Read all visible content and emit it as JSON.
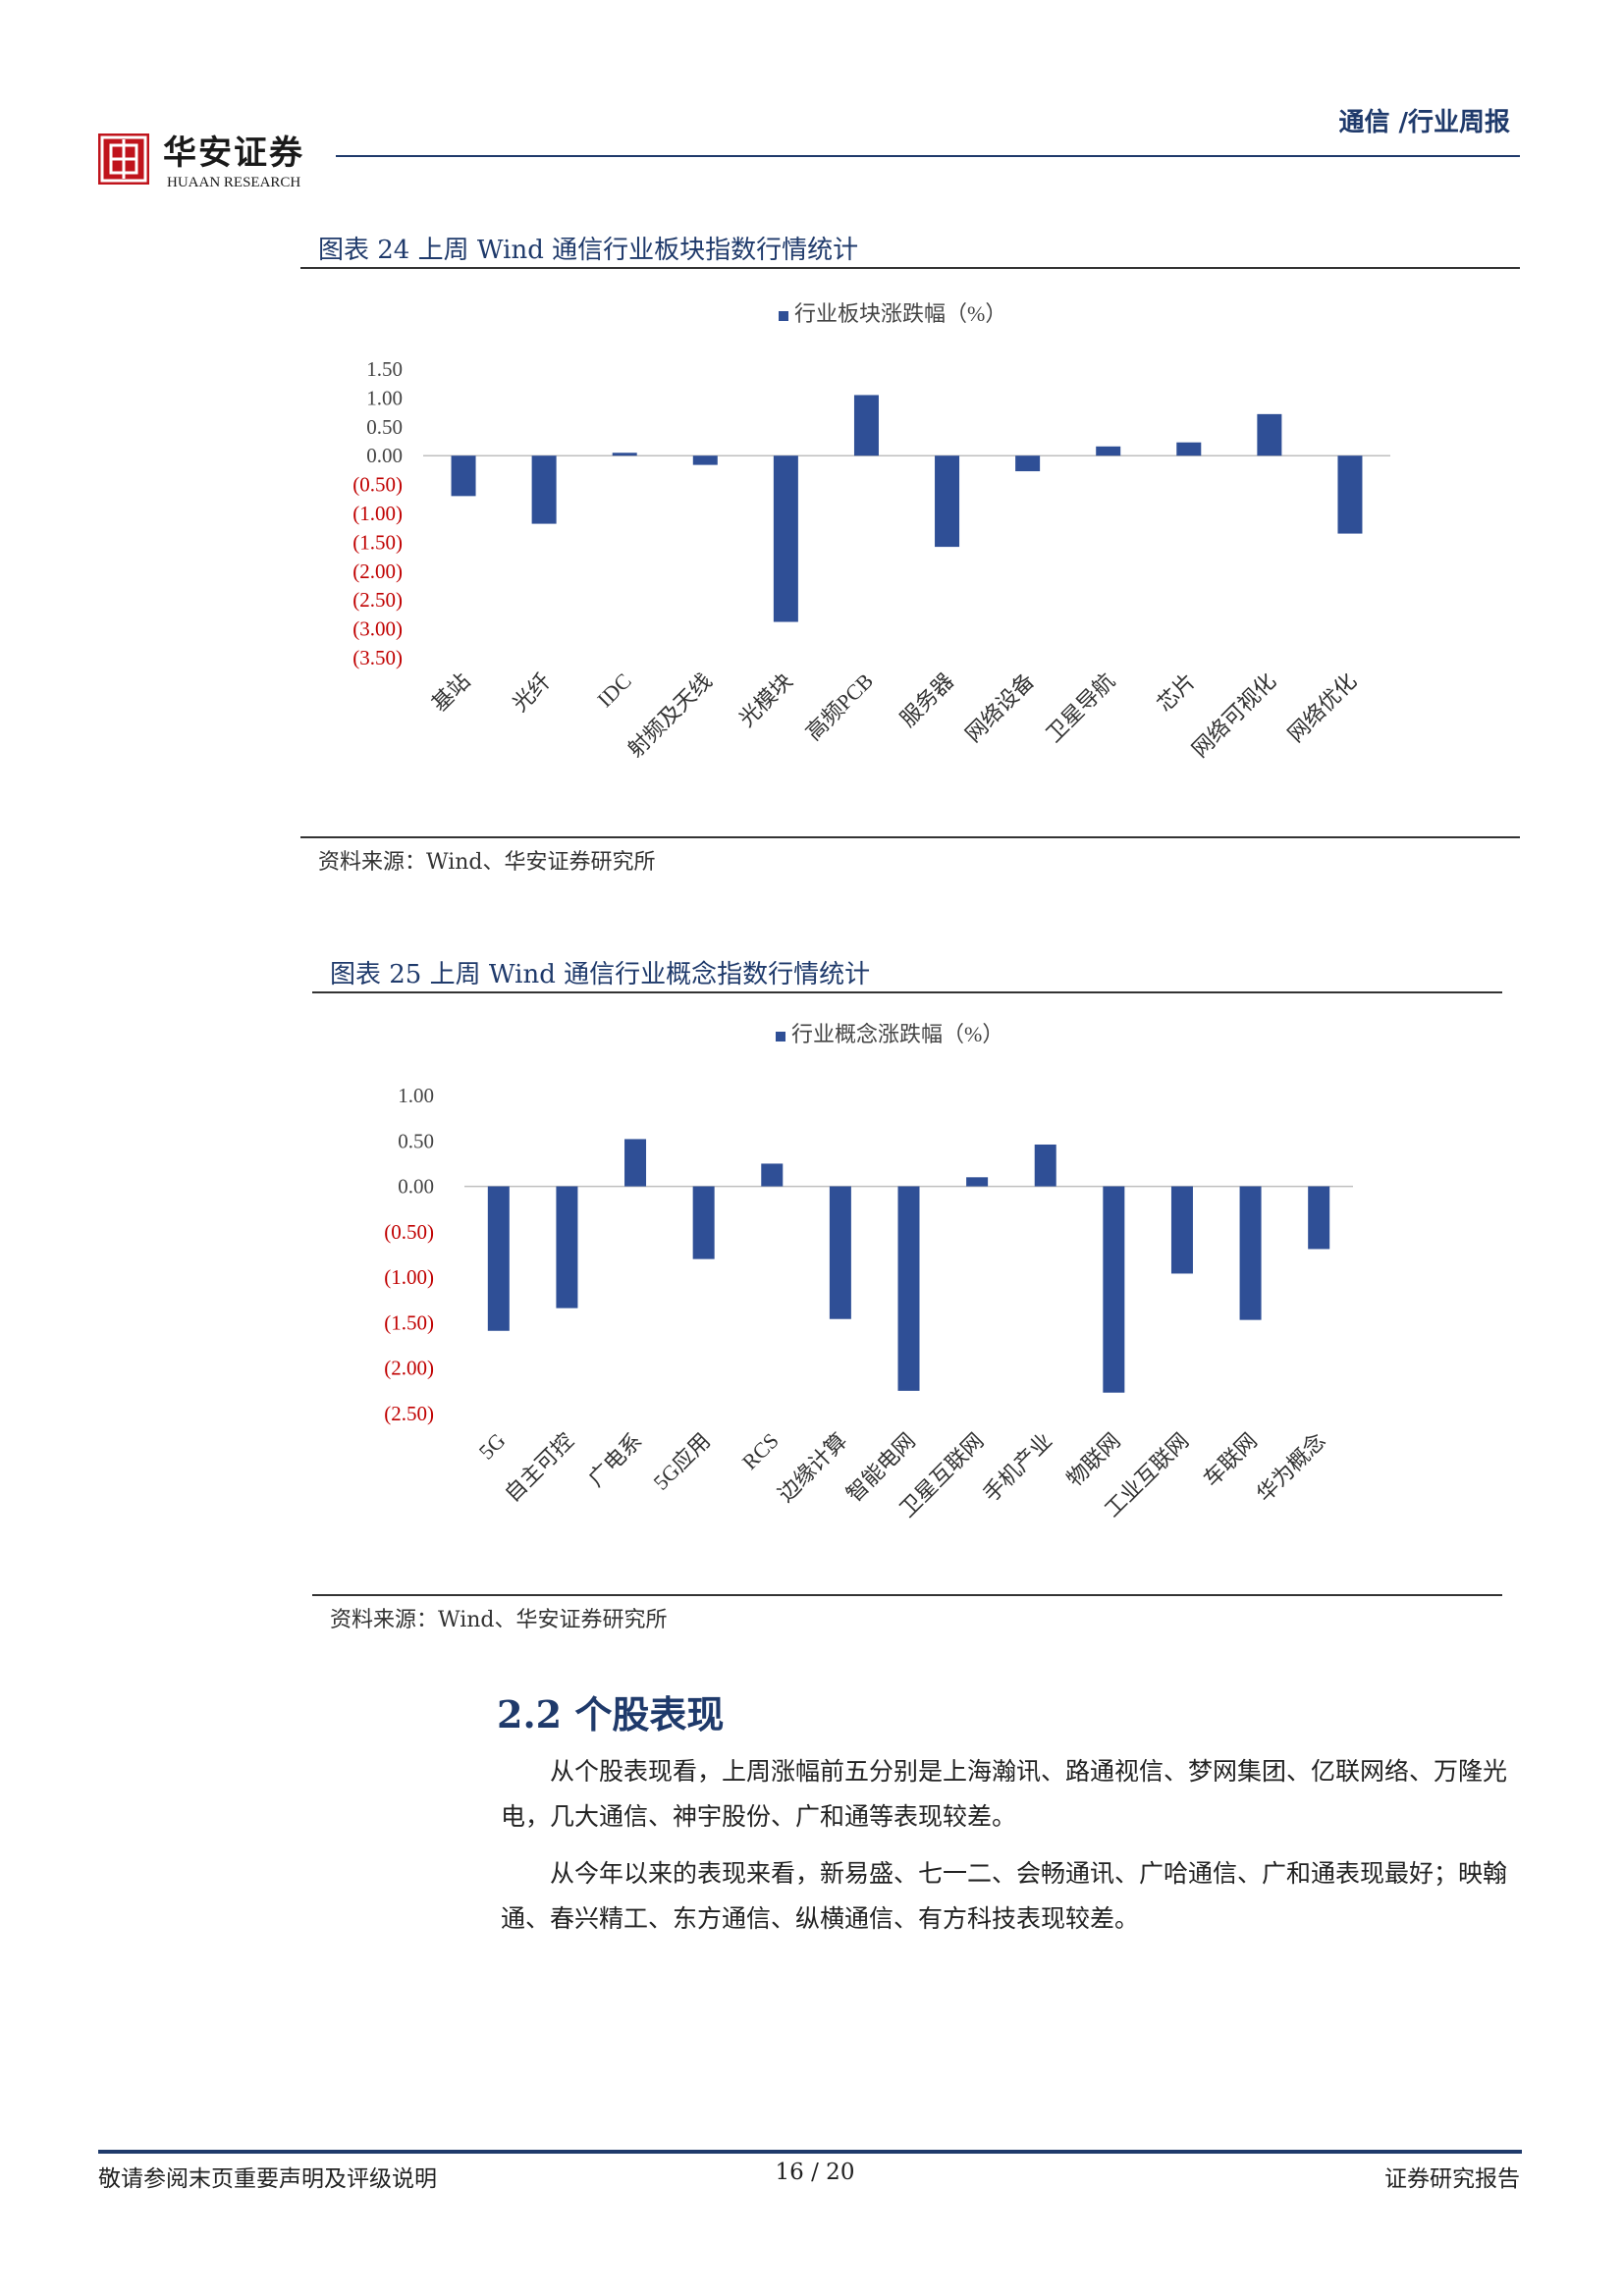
{
  "header": {
    "logo_cn": "华安证券",
    "logo_en": "HUAAN RESEARCH",
    "category": "通信 /行业周报"
  },
  "figure24": {
    "title": "图表 24 上周 Wind 通信行业板块指数行情统计",
    "source": "资料来源：Wind、华安证券研究所"
  },
  "figure25": {
    "title": "图表 25 上周 Wind 通信行业概念指数行情统计",
    "source": "资料来源：Wind、华安证券研究所"
  },
  "chart_data": [
    {
      "type": "bar",
      "legend": "行业板块涨跌幅（%）",
      "legend_position": "top-center",
      "grid": false,
      "categories": [
        "基站",
        "光纤",
        "IDC",
        "射频及天线",
        "光模块",
        "高频PCB",
        "服务器",
        "网络设备",
        "卫星导航",
        "芯片",
        "网络可视化",
        "网络优化"
      ],
      "values": [
        -0.7,
        -1.18,
        0.05,
        -0.16,
        -2.88,
        1.05,
        -1.58,
        -0.27,
        0.16,
        0.23,
        0.72,
        -1.35
      ],
      "ylim": [
        -3.5,
        1.5
      ],
      "yticks": [
        "1.50",
        "1.00",
        "0.50",
        "0.00",
        "(0.50)",
        "(1.00)",
        "(1.50)",
        "(2.00)",
        "(2.50)",
        "(3.00)",
        "(3.50)"
      ],
      "bar_color": "#2f4f96",
      "negative_tick_color": "#c00000"
    },
    {
      "type": "bar",
      "legend": "行业概念涨跌幅（%）",
      "legend_position": "top-center",
      "grid": false,
      "categories": [
        "5G",
        "自主可控",
        "广电系",
        "5G应用",
        "RCS",
        "边缘计算",
        "智能电网",
        "卫星互联网",
        "手机产业",
        "物联网",
        "工业互联网",
        "车联网",
        "华为概念"
      ],
      "values": [
        -1.59,
        -1.34,
        0.52,
        -0.8,
        0.25,
        -1.46,
        -2.25,
        0.1,
        0.46,
        -2.27,
        -0.96,
        -1.47,
        -0.69
      ],
      "ylim": [
        -2.5,
        1.0
      ],
      "yticks": [
        "1.00",
        "0.50",
        "0.00",
        "(0.50)",
        "(1.00)",
        "(1.50)",
        "(2.00)",
        "(2.50)"
      ],
      "bar_color": "#2f4f96",
      "negative_tick_color": "#c00000"
    }
  ],
  "section": {
    "title": "2.2 个股表现",
    "paragraphs": [
      "从个股表现看，上周涨幅前五分别是上海瀚讯、路通视信、梦网集团、亿联网络、万隆光电，几大通信、神宇股份、广和通等表现较差。",
      "从今年以来的表现来看，新易盛、七一二、会畅通讯、广哈通信、广和通表现最好；映翰通、春兴精工、东方通信、纵横通信、有方科技表现较差。"
    ]
  },
  "footer": {
    "left": "敬请参阅末页重要声明及评级说明",
    "page": "16 / 20",
    "right": "证券研究报告"
  }
}
